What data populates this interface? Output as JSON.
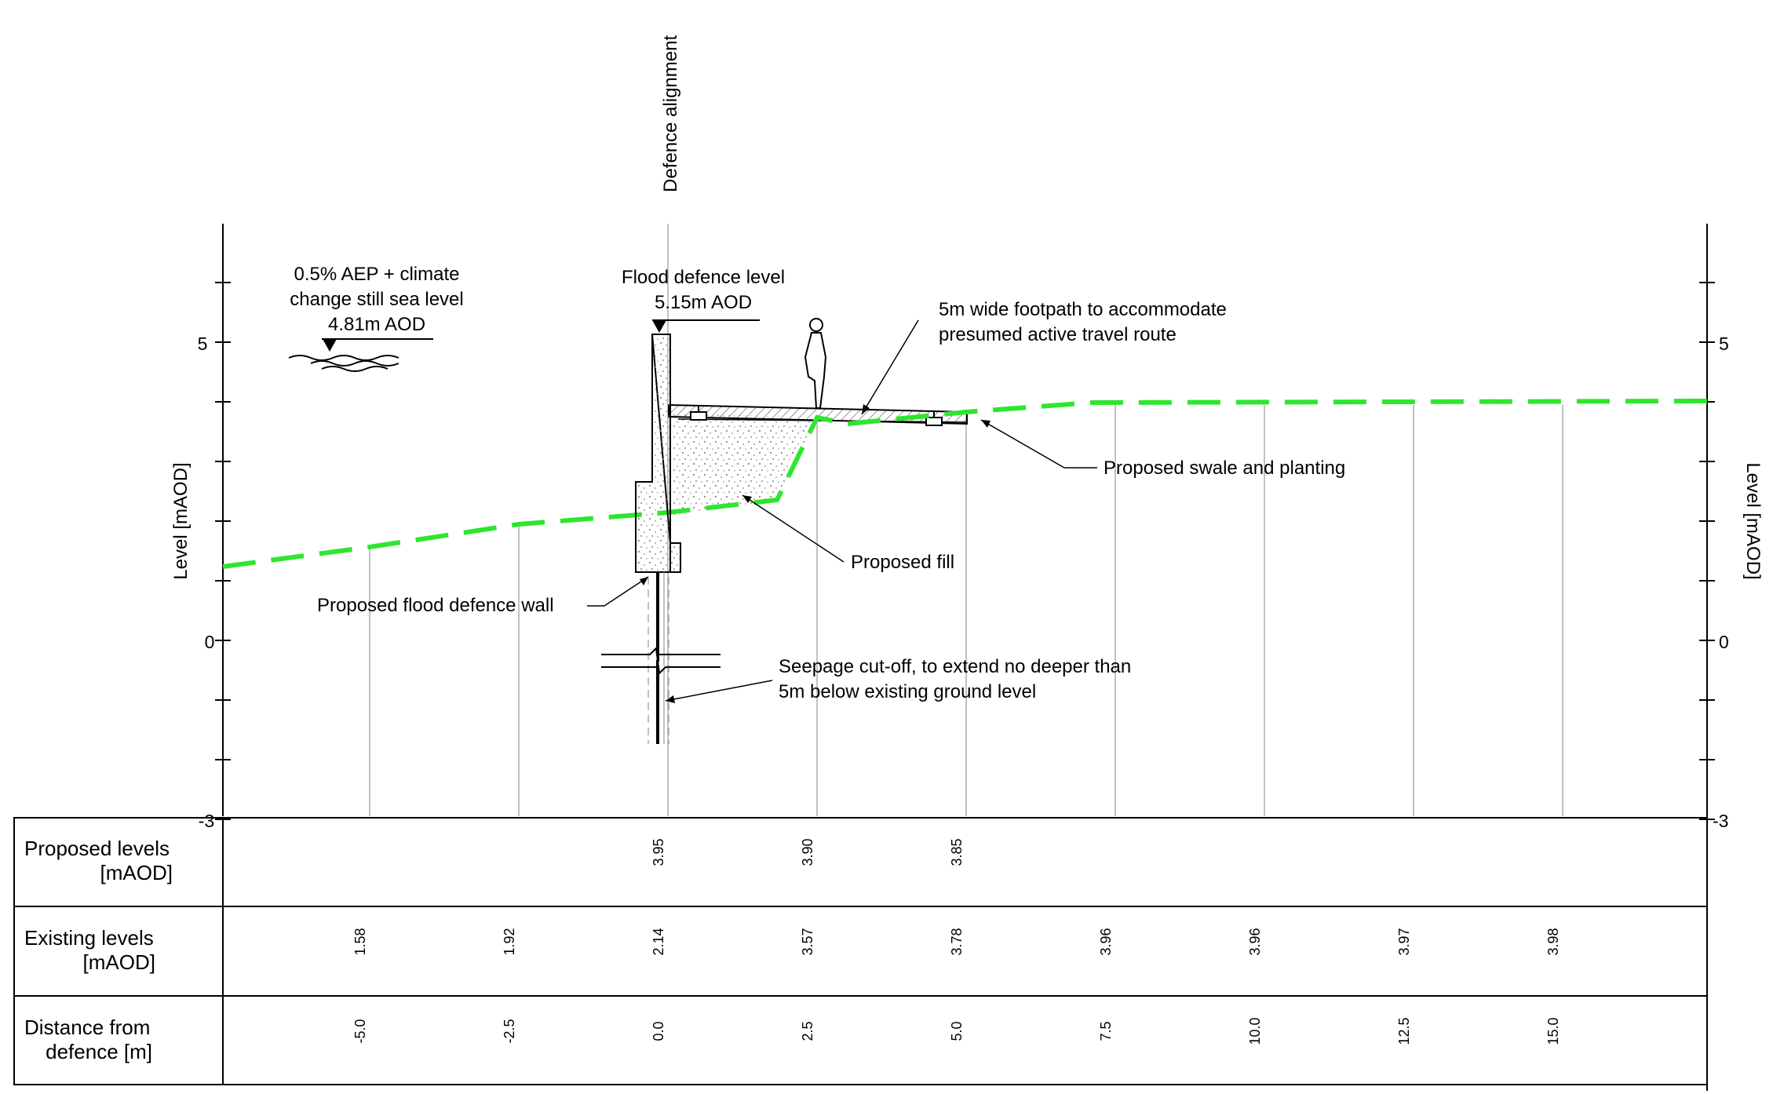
{
  "section": {
    "defence_alignment_label": "Defence alignment",
    "axis_label_left": "Level [mAOD]",
    "axis_label_right": "Level [mAOD]",
    "y_ticks": [
      "5",
      "0",
      "-3"
    ]
  },
  "annotations": {
    "sea_level": [
      "0.5% AEP + climate",
      "change still sea level",
      "4.81m AOD"
    ],
    "flood_level": [
      "Flood defence level",
      "5.15m AOD"
    ],
    "footpath": [
      "5m wide footpath to accommodate",
      "presumed active travel route"
    ],
    "swale": "Proposed swale and planting",
    "fill": "Proposed fill",
    "wall": "Proposed flood defence wall",
    "seepage": [
      "Seepage cut-off, to extend no deeper than",
      "5m below existing ground level"
    ]
  },
  "table": {
    "rows": [
      {
        "label": [
          "Proposed levels",
          "[mAOD]"
        ],
        "values": [
          "",
          "",
          "3.95",
          "3.90",
          "3.85",
          "",
          "",
          "",
          ""
        ]
      },
      {
        "label": [
          "Existing levels",
          "[mAOD]"
        ],
        "values": [
          "1.58",
          "1.92",
          "2.14",
          "3.57",
          "3.78",
          "3.96",
          "3.96",
          "3.97",
          "3.98"
        ]
      },
      {
        "label": [
          "Distance from",
          "defence [m]"
        ],
        "values": [
          "-5.0",
          "-2.5",
          "0.0",
          "2.5",
          "5.0",
          "7.5",
          "10.0",
          "12.5",
          "15.0"
        ]
      }
    ]
  },
  "colors": {
    "existing_ground": "#2ee62e",
    "line": "#000000",
    "grid": "#9a9a9a",
    "fill_dots": "#8a8a8a"
  }
}
